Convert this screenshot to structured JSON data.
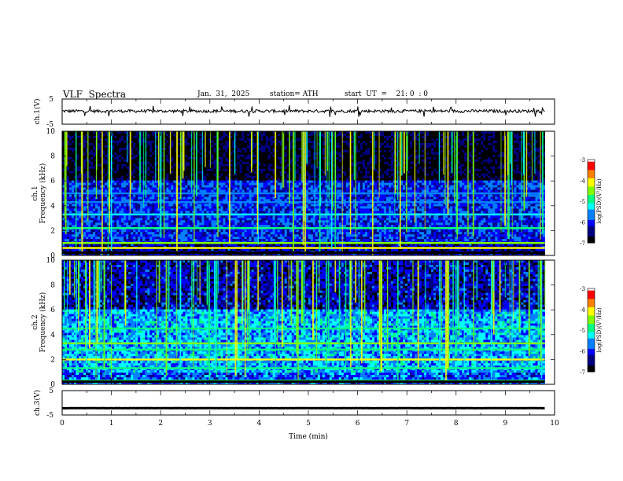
{
  "header": {
    "title": "VLF  Spectra",
    "date": "Jan.  31,  2025",
    "station": "station= ATH",
    "start": "start  UT  =    21: 0  : 0"
  },
  "chart_data": [
    {
      "type": "line",
      "name": "ch1-waveform",
      "ylabel": "ch.1(V)",
      "ylim": [
        -5,
        5
      ],
      "yticks": [
        "5",
        "-5"
      ],
      "xlim": [
        0,
        10
      ],
      "baseline": 0.2,
      "noise_amplitude": 0.6,
      "line_color": "#000000"
    },
    {
      "type": "heatmap",
      "name": "ch1-spectrogram",
      "ylabel": "ch.1\nFrequency (kHz)",
      "ylim": [
        0,
        10
      ],
      "yticks": [
        "0",
        "2",
        "4",
        "6",
        "8",
        "10"
      ],
      "xlim": [
        0,
        10
      ],
      "colorbar": {
        "label": "log(PSD)(V²/Hz)",
        "range": [
          -7,
          -3
        ],
        "ticks": [
          "-3",
          "-4",
          "-5",
          "-6",
          "-7"
        ]
      },
      "bands_kHz": [
        {
          "f": 0.2,
          "level": -4.6
        },
        {
          "f": 0.6,
          "level": -4.0
        },
        {
          "f": 1.0,
          "level": -4.4
        },
        {
          "f": 2.2,
          "level": -4.8
        },
        {
          "f": 3.3,
          "level": -5.2
        },
        {
          "f": 4.3,
          "level": -5.4
        },
        {
          "f": 5.0,
          "level": -5.6
        }
      ],
      "background_level": -6.3
    },
    {
      "type": "heatmap",
      "name": "ch2-spectrogram",
      "ylabel": "ch.2\nFrequency (kHz)",
      "ylim": [
        0,
        10
      ],
      "yticks": [
        "0",
        "2",
        "4",
        "6",
        "8",
        "10"
      ],
      "xlim": [
        0,
        10
      ],
      "colorbar": {
        "label": "log(PSD)(V²/Hz)",
        "range": [
          -7,
          -3
        ],
        "ticks": [
          "-3",
          "-4",
          "-5",
          "-6",
          "-7"
        ]
      },
      "bands_kHz": [
        {
          "f": 0.3,
          "level": -4.8
        },
        {
          "f": 1.3,
          "level": -5.0
        },
        {
          "f": 2.0,
          "level": -4.2
        },
        {
          "f": 2.8,
          "level": -4.9
        },
        {
          "f": 3.3,
          "level": -4.4
        },
        {
          "f": 4.5,
          "level": -4.9
        }
      ],
      "background_level": -5.8
    },
    {
      "type": "line",
      "name": "ch3-waveform",
      "ylabel": "ch.3(V)",
      "ylim": [
        -5,
        5
      ],
      "yticks": [
        "5",
        "-5"
      ],
      "xlim": [
        0,
        10
      ],
      "baseline": -2.2,
      "noise_amplitude": 0.05,
      "line_color": "#000000"
    }
  ],
  "x_axis": {
    "label": "Time  (min)",
    "ticks": [
      "0",
      "1",
      "2",
      "3",
      "4",
      "5",
      "6",
      "7",
      "8",
      "9",
      "10"
    ],
    "range": [
      0,
      10
    ],
    "data_end": 9.8
  },
  "colors": {
    "colormap": [
      "#000000",
      "#000080",
      "#0000ff",
      "#0080ff",
      "#00ffff",
      "#00ff80",
      "#80ff00",
      "#ffff00",
      "#ff8000",
      "#ff0000",
      "#ffffff"
    ]
  }
}
